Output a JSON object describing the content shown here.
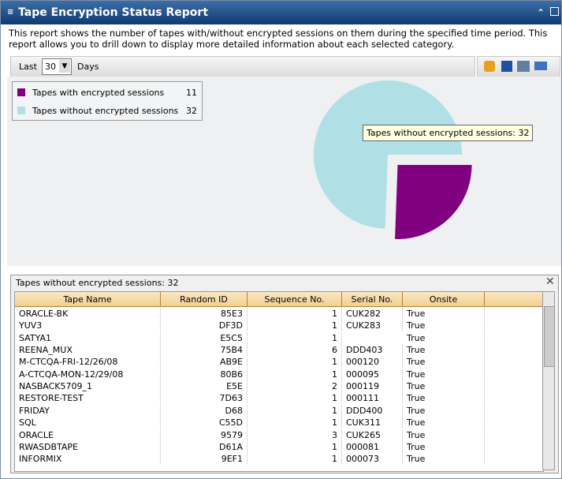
{
  "header": {
    "title": "Tape Encryption Status Report"
  },
  "description": "This report shows the number of tapes with/without encrypted sessions on them during the specified time period. This report allows you to drill down to display more detailed information about each selected category.",
  "toolbar": {
    "last_label": "Last",
    "period": "30",
    "unit_label": "Days"
  },
  "pie": {
    "items": [
      {
        "name": "Tapes with encrypted sessions",
        "value": 11,
        "color": "#800080"
      },
      {
        "name": "Tapes without encrypted sessions",
        "value": 32,
        "color": "#b0e0e6"
      }
    ],
    "tooltip": "Tapes without encrypted sessions: 32"
  },
  "table": {
    "title": "Tapes without encrypted sessions: 32",
    "columns": [
      "Tape Name",
      "Random ID",
      "Sequence No.",
      "Serial No.",
      "Onsite"
    ],
    "rows": [
      [
        "ORACLE-BK",
        "85E3",
        1,
        "CUK282",
        "True"
      ],
      [
        "YUV3",
        "DF3D",
        1,
        "CUK283",
        "True"
      ],
      [
        "SATYA1",
        "E5C5",
        1,
        null,
        "True"
      ],
      [
        "REENA_MUX",
        "75B4",
        6,
        "DDD403",
        "True"
      ],
      [
        "M-CTCQA-FRI-12/26/08",
        "AB9E",
        1,
        "000120",
        "True"
      ],
      [
        "A-CTCQA-MON-12/29/08",
        "80B6",
        1,
        "000095",
        "True"
      ],
      [
        "NASBACK5709_1",
        "E5E",
        2,
        "000119",
        "True"
      ],
      [
        "RESTORE-TEST",
        "7D63",
        1,
        "000111",
        "True"
      ],
      [
        "FRIDAY",
        "D68",
        1,
        "DDD400",
        "True"
      ],
      [
        "SQL",
        "C55D",
        1,
        "CUK311",
        "True"
      ],
      [
        "ORACLE",
        "9579",
        3,
        "CUK265",
        "True"
      ],
      [
        "RWASDBTAPE",
        "D61A",
        1,
        "000081",
        "True"
      ],
      [
        "INFORMIX",
        "9EF1",
        1,
        "000073",
        "True"
      ]
    ]
  }
}
